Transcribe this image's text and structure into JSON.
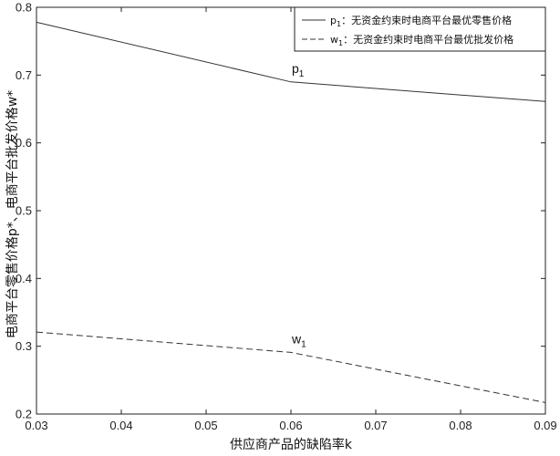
{
  "chart_data": {
    "type": "line",
    "xlabel": "供应商产品的缺陷率k",
    "ylabel": "电商平台零售价格p*、电商平台批发价格w*",
    "xlim": [
      0.03,
      0.09
    ],
    "ylim": [
      0.2,
      0.8
    ],
    "xticks": [
      "0.03",
      "0.04",
      "0.05",
      "0.06",
      "0.07",
      "0.08",
      "0.09"
    ],
    "yticks": [
      "0.2",
      "0.3",
      "0.4",
      "0.5",
      "0.6",
      "0.7",
      "0.8"
    ],
    "grid": false,
    "legend_position": "top-right",
    "series": [
      {
        "name": "p1：无资金约束时电商平台最优零售价格",
        "legend_symbol": "p",
        "legend_sub": "1",
        "legend_desc": "：无资金约束时电商平台最优零售价格",
        "style": "solid",
        "x": [
          0.03,
          0.06,
          0.09
        ],
        "y": [
          0.778,
          0.69,
          0.661
        ]
      },
      {
        "name": "w1：无资金约束时电商平台最优批发价格",
        "legend_symbol": "w",
        "legend_sub": "1",
        "legend_desc": "：无资金约束时电商平台最优批发价格",
        "style": "dashed",
        "x": [
          0.03,
          0.06,
          0.09
        ],
        "y": [
          0.321,
          0.291,
          0.217
        ]
      }
    ],
    "annotations": [
      {
        "symbol": "p",
        "sub": "1",
        "x": 0.06,
        "y": 0.69
      },
      {
        "symbol": "w",
        "sub": "1",
        "x": 0.06,
        "y": 0.291
      }
    ]
  }
}
